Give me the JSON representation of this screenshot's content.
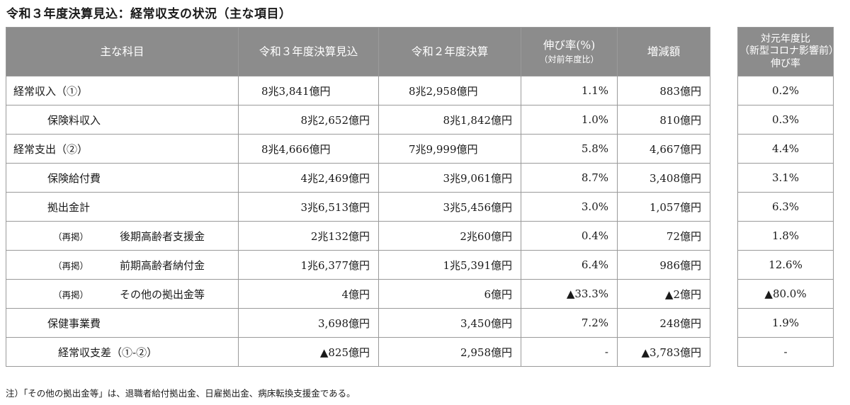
{
  "title": "令和３年度決算見込：経常収支の状況（主な項目）",
  "header": {
    "item": "主な科目",
    "r3": "令和３年度決算見込",
    "r2": "令和２年度決算",
    "growth": "伸び率(%)",
    "growth_sub": "（対前年度比）",
    "diff": "増減額",
    "base_line1": "対元年度比",
    "base_line2": "（新型コロナ影響前）",
    "base_line3": "伸び率"
  },
  "rows": [
    {
      "label": "経常収入（①）",
      "r3": "8兆3,841億円",
      "r2": "8兆2,958億円",
      "growth": "1.1%",
      "diff": "883億円",
      "base": "0.2%"
    },
    {
      "label": "保険料収入",
      "r3": "8兆2,652億円",
      "r2": "8兆1,842億円",
      "growth": "1.0%",
      "diff": "810億円",
      "base": "0.3%"
    },
    {
      "label": "経常支出（②）",
      "r3": "8兆4,666億円",
      "r2": "7兆9,999億円",
      "growth": "5.8%",
      "diff": "4,667億円",
      "base": "4.4%"
    },
    {
      "label": "保険給付費",
      "r3": "4兆2,469億円",
      "r2": "3兆9,061億円",
      "growth": "8.7%",
      "diff": "3,408億円",
      "base": "3.1%"
    },
    {
      "label": "拠出金計",
      "r3": "3兆6,513億円",
      "r2": "3兆5,456億円",
      "growth": "3.0%",
      "diff": "1,057億円",
      "base": "6.3%"
    },
    {
      "prefix": "（再掲）",
      "label": "後期高齢者支援金",
      "r3": "2兆132億円",
      "r2": "2兆60億円",
      "growth": "0.4%",
      "diff": "72億円",
      "base": "1.8%"
    },
    {
      "prefix": "（再掲）",
      "label": "前期高齢者納付金",
      "r3": "1兆6,377億円",
      "r2": "1兆5,391億円",
      "growth": "6.4%",
      "diff": "986億円",
      "base": "12.6%"
    },
    {
      "prefix": "（再掲）",
      "label": "その他の拠出金等",
      "r3": "4億円",
      "r2": "6億円",
      "growth": "▲33.3%",
      "diff": "▲2億円",
      "base": "▲80.0%"
    },
    {
      "label": "保健事業費",
      "r3": "3,698億円",
      "r2": "3,450億円",
      "growth": "7.2%",
      "diff": "248億円",
      "base": "1.9%"
    },
    {
      "label": "経常収支差（①-②）",
      "r3": "▲825億円",
      "r2": "2,958億円",
      "growth": "-",
      "diff": "▲3,783億円",
      "base": "-"
    }
  ],
  "note": "注）「その他の拠出金等」は、退職者給付拠出金、日雇拠出金、病床転換支援金である。"
}
